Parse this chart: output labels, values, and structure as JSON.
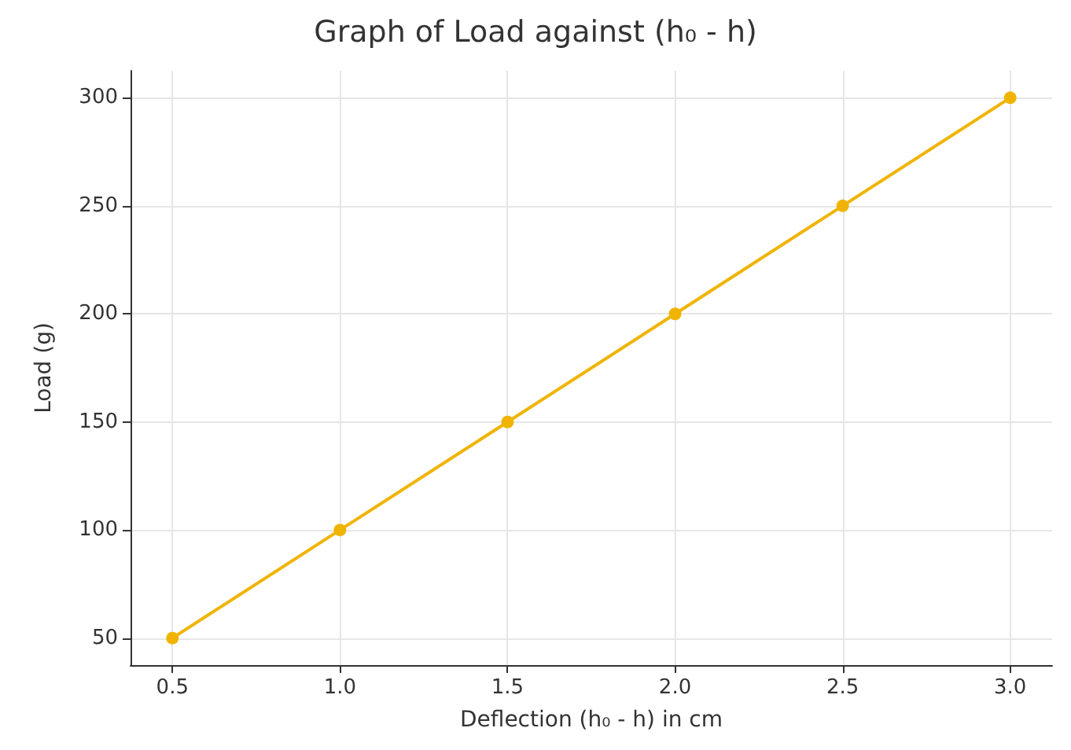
{
  "chart_data": {
    "type": "line",
    "title": "Graph of Load against (h₀ - h)",
    "xlabel": "Deflection (h₀ - h) in cm",
    "ylabel": "Load (g)",
    "x": [
      0.5,
      1.0,
      1.5,
      2.0,
      2.5,
      3.0
    ],
    "series": [
      {
        "color": "#f0b400",
        "values": [
          50,
          100,
          150,
          200,
          250,
          300
        ]
      }
    ],
    "xlim": [
      0.375,
      3.125
    ],
    "ylim": [
      37.5,
      312.5
    ],
    "xticks": [
      {
        "value": 0.5,
        "label": "0.5"
      },
      {
        "value": 1,
        "label": "1.0"
      },
      {
        "value": 1.5,
        "label": "1.5"
      },
      {
        "value": 2,
        "label": "2.0"
      },
      {
        "value": 2.5,
        "label": "2.5"
      },
      {
        "value": 3,
        "label": "3.0"
      }
    ],
    "yticks": [
      50,
      100,
      150,
      200,
      250,
      300
    ],
    "grid": true,
    "marker": "circle",
    "line_style": "solid"
  }
}
